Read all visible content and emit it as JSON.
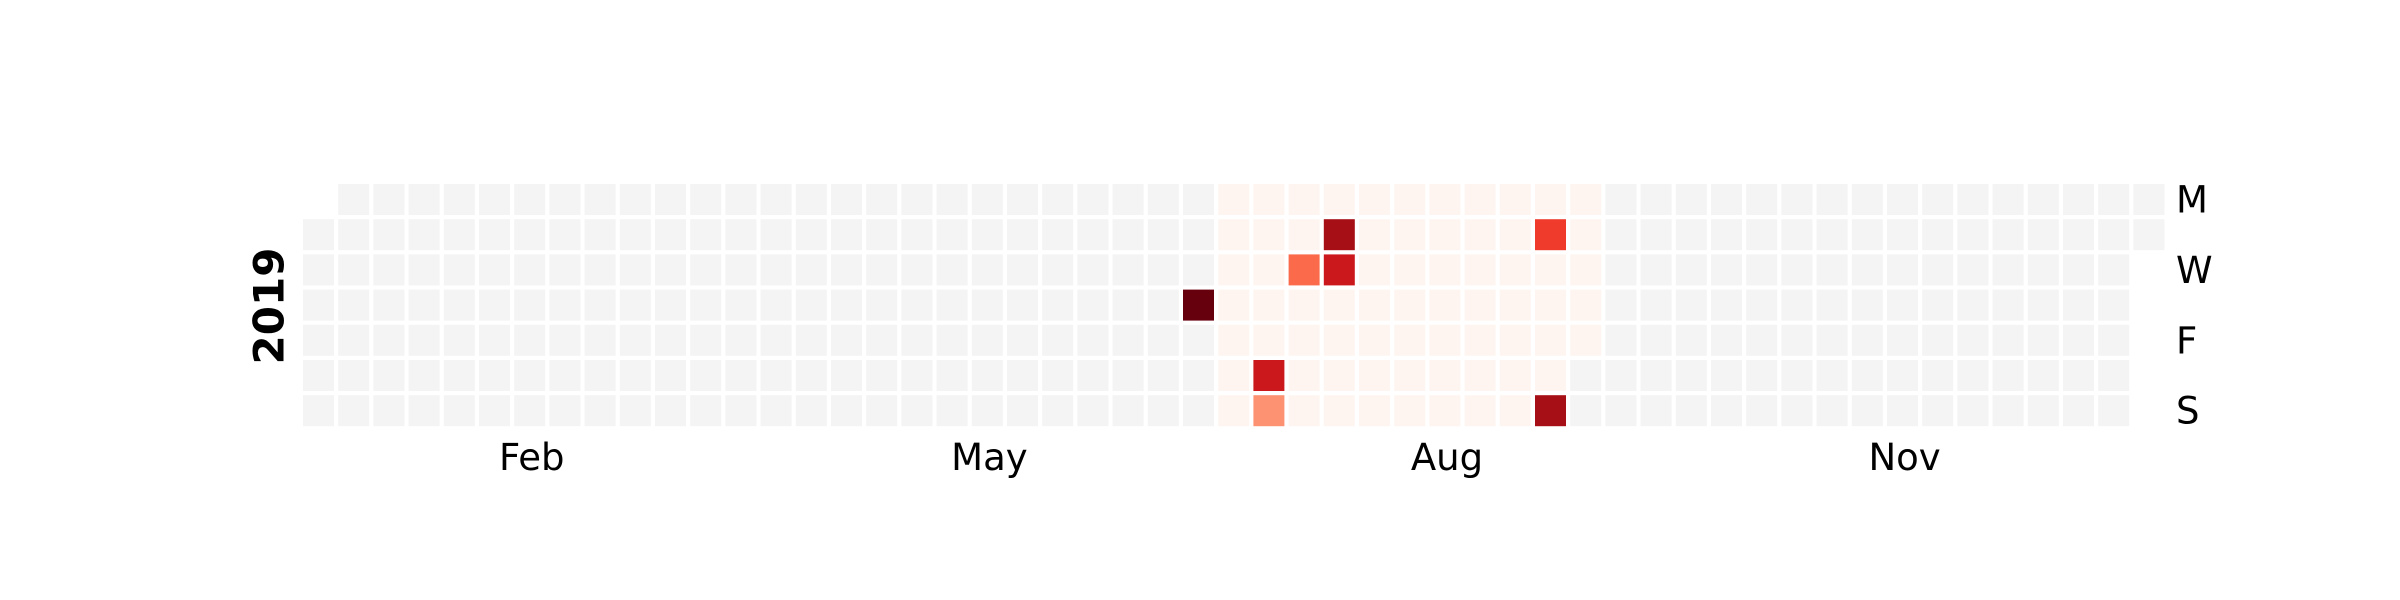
{
  "chart_data": {
    "type": "heatmap",
    "subtype": "calendar",
    "year": "2019",
    "month_labels": [
      "Feb",
      "May",
      "Aug",
      "Nov"
    ],
    "day_labels": [
      "M",
      "W",
      "F",
      "S"
    ],
    "colors": {
      "empty": "#f4f4f4",
      "active_range": "#fff5f0",
      "gridline": "#ffffff",
      "scale": [
        "#fff5f0",
        "#fc9272",
        "#fb6a4a",
        "#ef3b2c",
        "#cb181d",
        "#a50f15",
        "#67000d"
      ]
    },
    "active_range": {
      "start": "2019-07-01",
      "end": "2019-09-13"
    },
    "values": [
      {
        "date": "2019-06-27",
        "value": 6
      },
      {
        "date": "2019-07-13",
        "value": 4
      },
      {
        "date": "2019-07-14",
        "value": 1
      },
      {
        "date": "2019-07-17",
        "value": 2
      },
      {
        "date": "2019-07-23",
        "value": 5
      },
      {
        "date": "2019-07-24",
        "value": 4
      },
      {
        "date": "2019-09-03",
        "value": 3
      },
      {
        "date": "2019-09-08",
        "value": 5
      }
    ],
    "legend": "none",
    "grid": false
  }
}
